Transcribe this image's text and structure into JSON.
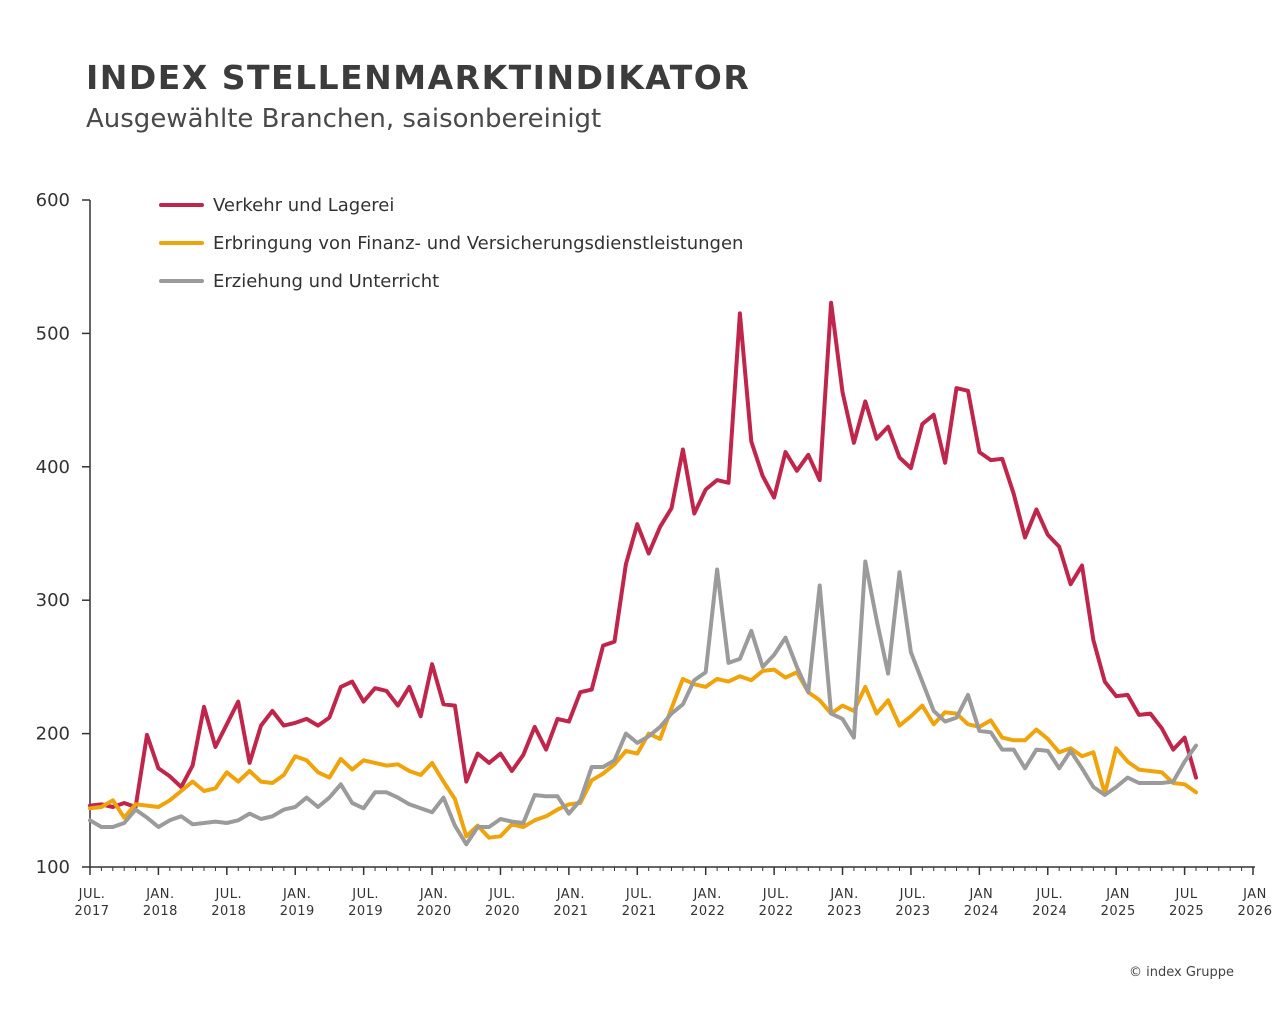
{
  "header": {
    "title": "INDEX STELLENMARKTINDIKATOR",
    "subtitle": "Ausgewählte Branchen, saisonbereinigt"
  },
  "footer": {
    "copyright": "© index Gruppe"
  },
  "chart_data": {
    "type": "line",
    "title": "INDEX STELLENMARKTINDIKATOR",
    "subtitle": "Ausgewählte Branchen, saisonbereinigt",
    "xlabel": "",
    "ylabel": "",
    "ylim": [
      100,
      600
    ],
    "yticks": [
      100,
      200,
      300,
      400,
      500,
      600
    ],
    "x_start": "2017-07",
    "xlim": [
      "2017-07",
      "2026-01"
    ],
    "x_ticks": [
      {
        "month": "2017-07",
        "line1": "JUL.",
        "line2": "2017"
      },
      {
        "month": "2018-01",
        "line1": "JAN.",
        "line2": "2018"
      },
      {
        "month": "2018-07",
        "line1": "JUL.",
        "line2": "2018"
      },
      {
        "month": "2019-01",
        "line1": "JAN.",
        "line2": "2019"
      },
      {
        "month": "2019-07",
        "line1": "JUL.",
        "line2": "2019"
      },
      {
        "month": "2020-01",
        "line1": "JAN.",
        "line2": "2020"
      },
      {
        "month": "2020-07",
        "line1": "JUL.",
        "line2": "2020"
      },
      {
        "month": "2021-01",
        "line1": "JAN.",
        "line2": "2021"
      },
      {
        "month": "2021-07",
        "line1": "JUL.",
        "line2": "2021"
      },
      {
        "month": "2022-01",
        "line1": "JAN.",
        "line2": "2022"
      },
      {
        "month": "2022-07",
        "line1": "JUL.",
        "line2": "2022"
      },
      {
        "month": "2023-01",
        "line1": "JAN.",
        "line2": "2023"
      },
      {
        "month": "2023-07",
        "line1": "JUL.",
        "line2": "2023"
      },
      {
        "month": "2024-01",
        "line1": "JAN",
        "line2": "2024"
      },
      {
        "month": "2024-07",
        "line1": "JUL.",
        "line2": "2024"
      },
      {
        "month": "2025-01",
        "line1": "JAN",
        "line2": "2025"
      },
      {
        "month": "2025-07",
        "line1": "JUL",
        "line2": "2025"
      },
      {
        "month": "2026-01",
        "line1": "JAN",
        "line2": "2026"
      }
    ],
    "grid": false,
    "legend_position": "top-left",
    "series": [
      {
        "name": "Verkehr und Lagerei",
        "color": "#c0264b",
        "values": [
          146,
          147,
          145,
          148,
          145,
          199,
          174,
          168,
          160,
          176,
          220,
          190,
          207,
          224,
          178,
          206,
          217,
          206,
          208,
          211,
          206,
          212,
          235,
          239,
          224,
          234,
          232,
          221,
          235,
          213,
          252,
          222,
          221,
          164,
          185,
          178,
          185,
          172,
          184,
          205,
          188,
          211,
          209,
          231,
          233,
          266,
          269,
          327,
          357,
          335,
          355,
          369,
          413,
          365,
          383,
          390,
          388,
          515,
          419,
          393,
          377,
          411,
          397,
          409,
          390,
          523,
          456,
          418,
          449,
          421,
          430,
          407,
          399,
          432,
          439,
          403,
          459,
          457,
          411,
          405,
          406,
          380,
          347,
          368,
          349,
          340,
          312,
          326,
          270,
          239,
          228,
          229,
          214,
          215,
          204,
          188,
          197,
          167
        ]
      },
      {
        "name": "Erbringung von Finanz- und Versicherungsdienstleistungen",
        "color": "#f0a30a",
        "values": [
          144,
          145,
          150,
          137,
          147,
          146,
          145,
          150,
          157,
          164,
          157,
          159,
          171,
          164,
          172,
          164,
          163,
          169,
          183,
          180,
          171,
          167,
          181,
          173,
          180,
          178,
          176,
          177,
          172,
          169,
          178,
          164,
          151,
          123,
          131,
          122,
          123,
          132,
          130,
          135,
          138,
          143,
          147,
          148,
          165,
          170,
          177,
          187,
          185,
          200,
          196,
          219,
          241,
          237,
          235,
          241,
          239,
          243,
          240,
          247,
          248,
          242,
          246,
          231,
          225,
          215,
          221,
          217,
          235,
          215,
          225,
          206,
          213,
          221,
          207,
          216,
          215,
          207,
          205,
          210,
          197,
          195,
          195,
          203,
          196,
          186,
          189,
          183,
          186,
          155,
          189,
          179,
          173,
          172,
          171,
          163,
          162,
          156
        ]
      },
      {
        "name": "Erziehung und Unterricht",
        "color": "#9b9b9b",
        "values": [
          135,
          130,
          130,
          133,
          143,
          137,
          130,
          135,
          138,
          132,
          133,
          134,
          133,
          135,
          140,
          136,
          138,
          143,
          145,
          152,
          145,
          152,
          162,
          148,
          144,
          156,
          156,
          152,
          147,
          144,
          141,
          152,
          131,
          117,
          130,
          130,
          136,
          134,
          133,
          154,
          153,
          153,
          140,
          150,
          175,
          175,
          180,
          200,
          193,
          198,
          205,
          215,
          222,
          240,
          246,
          323,
          253,
          256,
          277,
          250,
          259,
          272,
          250,
          231,
          311,
          215,
          211,
          197,
          329,
          285,
          245,
          321,
          261,
          239,
          217,
          209,
          212,
          229,
          202,
          201,
          188,
          188,
          174,
          188,
          187,
          174,
          187,
          174,
          160,
          154,
          160,
          167,
          163,
          163,
          163,
          164,
          179,
          191
        ]
      }
    ]
  }
}
